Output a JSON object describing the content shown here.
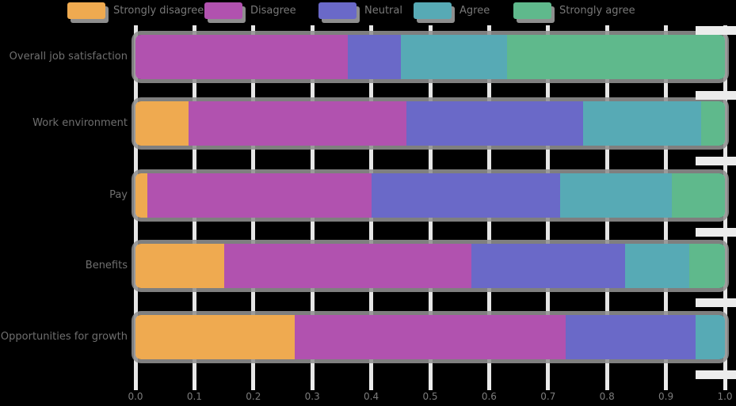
{
  "chart_data": {
    "type": "bar",
    "orientation": "horizontal",
    "stacked": true,
    "normalized": true,
    "title": "",
    "xlabel": "",
    "ylabel": "",
    "xlim": [
      0,
      1
    ],
    "grid": true,
    "legend_position": "top",
    "categories": [
      "Overall job satisfaction",
      "Work environment",
      "Pay",
      "Benefits",
      "Opportunities for growth"
    ],
    "series": [
      {
        "name": "Strongly disagree",
        "color": "#EFAA50",
        "values": [
          0.0,
          0.09,
          0.02,
          0.15,
          0.27
        ]
      },
      {
        "name": "Disagree",
        "color": "#B152AF",
        "values": [
          0.36,
          0.37,
          0.38,
          0.42,
          0.46
        ]
      },
      {
        "name": "Neutral",
        "color": "#6A69C8",
        "values": [
          0.09,
          0.3,
          0.32,
          0.26,
          0.22
        ]
      },
      {
        "name": "Agree",
        "color": "#57AAB5",
        "values": [
          0.18,
          0.2,
          0.19,
          0.11,
          0.05
        ]
      },
      {
        "name": "Strongly agree",
        "color": "#5FB98C",
        "values": [
          0.37,
          0.04,
          0.09,
          0.06,
          0.0
        ]
      }
    ],
    "x_tick_labels": [
      "0.0",
      "0.1",
      "0.2",
      "0.3",
      "0.4",
      "0.5",
      "0.6",
      "0.7",
      "0.8",
      "0.9",
      "1.0"
    ]
  },
  "style": {
    "background_color": "#000000",
    "gridline_color": "#E6E6E6",
    "bar_shadow_color": "#919191",
    "legend_text_color": "#787878",
    "axis_text_color": "#6f6f6f",
    "tick_text_color": "#7c7c7c"
  }
}
